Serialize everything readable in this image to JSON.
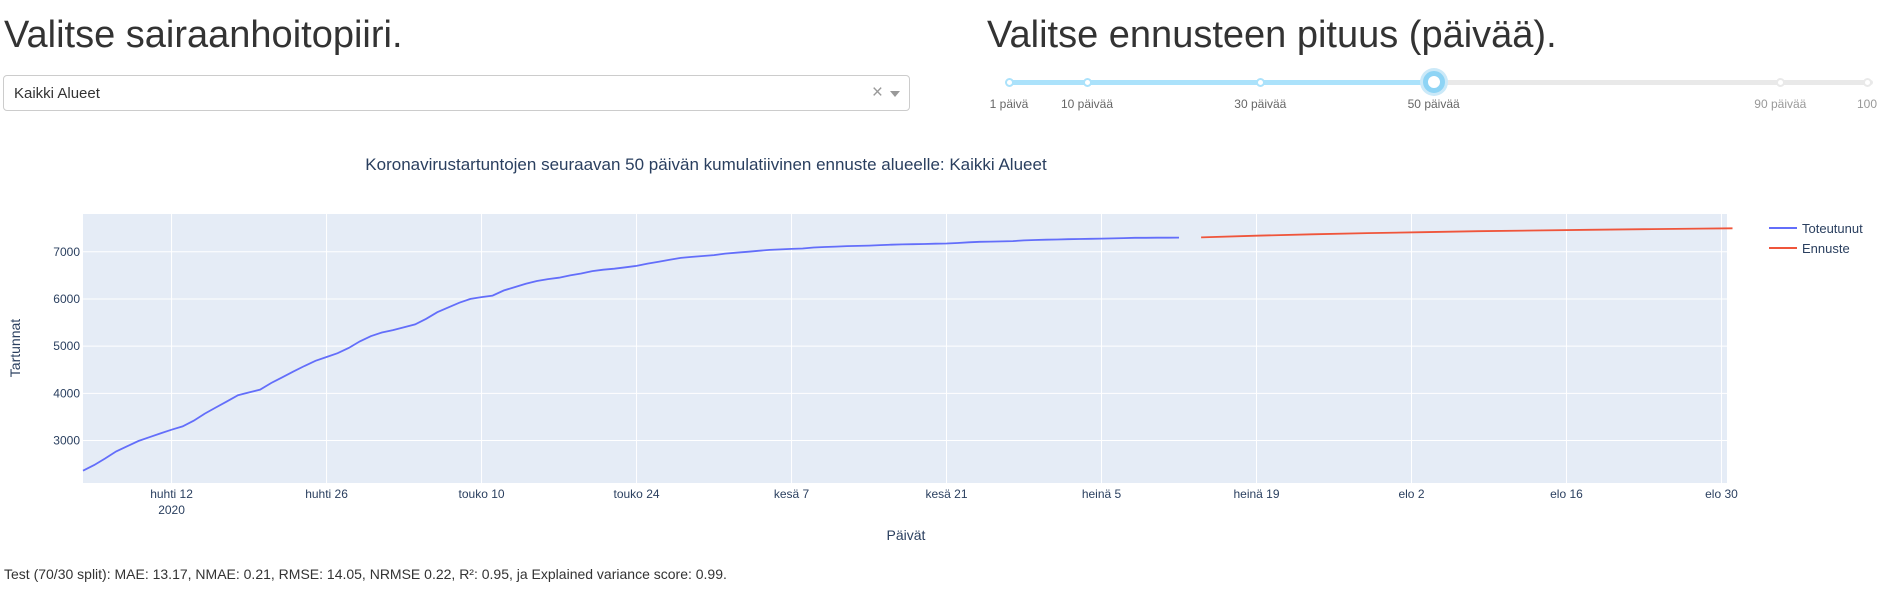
{
  "district": {
    "heading": "Valitse sairaanhoitopiiri.",
    "selected": "Kaikki Alueet",
    "clear_glyph": "×"
  },
  "forecast_length": {
    "heading": "Valitse ennusteen pituus (päivää).",
    "value": 50,
    "min": 1,
    "max": 100,
    "marks": [
      {
        "value": 1,
        "label": "1 päivä"
      },
      {
        "value": 10,
        "label": "10 päivää"
      },
      {
        "value": 30,
        "label": "30 päivää"
      },
      {
        "value": 50,
        "label": "50 päivää"
      },
      {
        "value": 90,
        "label": "90 päivää"
      },
      {
        "value": 100,
        "label": "100"
      }
    ]
  },
  "chart_data": {
    "type": "line",
    "title": "Koronavirustartuntojen seuraavan 50 päivän kumulatiivinen ennuste alueelle: Kaikki Alueet",
    "xlabel": "Päivät",
    "ylabel": "Tartunnat",
    "x_start": "2020-04-04",
    "x_end": "2020-08-30",
    "xlim": [
      "2020-04-04",
      "2020-08-30"
    ],
    "ylim": [
      2100,
      7800
    ],
    "y_ticks": [
      3000,
      4000,
      5000,
      6000,
      7000
    ],
    "x_ticks": [
      {
        "date": "2020-04-12",
        "label": "huhti 12",
        "sub": "2020"
      },
      {
        "date": "2020-04-26",
        "label": "huhti 26",
        "sub": ""
      },
      {
        "date": "2020-05-10",
        "label": "touko 10",
        "sub": ""
      },
      {
        "date": "2020-05-24",
        "label": "touko 24",
        "sub": ""
      },
      {
        "date": "2020-06-07",
        "label": "kesä 7",
        "sub": ""
      },
      {
        "date": "2020-06-21",
        "label": "kesä 21",
        "sub": ""
      },
      {
        "date": "2020-07-05",
        "label": "heinä 5",
        "sub": ""
      },
      {
        "date": "2020-07-19",
        "label": "heinä 19",
        "sub": ""
      },
      {
        "date": "2020-08-02",
        "label": "elo 2",
        "sub": ""
      },
      {
        "date": "2020-08-16",
        "label": "elo 16",
        "sub": ""
      },
      {
        "date": "2020-08-30",
        "label": "elo 30",
        "sub": ""
      }
    ],
    "grid": true,
    "legend_position": "top-right",
    "series": [
      {
        "name": "Toteutunut",
        "color": "#636efa",
        "points": [
          {
            "x": "2020-04-04",
            "y": 2360
          },
          {
            "x": "2020-04-05",
            "y": 2480
          },
          {
            "x": "2020-04-06",
            "y": 2620
          },
          {
            "x": "2020-04-07",
            "y": 2770
          },
          {
            "x": "2020-04-08",
            "y": 2880
          },
          {
            "x": "2020-04-09",
            "y": 2990
          },
          {
            "x": "2020-04-10",
            "y": 3070
          },
          {
            "x": "2020-04-11",
            "y": 3150
          },
          {
            "x": "2020-04-12",
            "y": 3230
          },
          {
            "x": "2020-04-13",
            "y": 3300
          },
          {
            "x": "2020-04-14",
            "y": 3420
          },
          {
            "x": "2020-04-15",
            "y": 3570
          },
          {
            "x": "2020-04-16",
            "y": 3700
          },
          {
            "x": "2020-04-17",
            "y": 3830
          },
          {
            "x": "2020-04-18",
            "y": 3960
          },
          {
            "x": "2020-04-19",
            "y": 4020
          },
          {
            "x": "2020-04-20",
            "y": 4080
          },
          {
            "x": "2020-04-21",
            "y": 4220
          },
          {
            "x": "2020-04-22",
            "y": 4340
          },
          {
            "x": "2020-04-23",
            "y": 4460
          },
          {
            "x": "2020-04-24",
            "y": 4580
          },
          {
            "x": "2020-04-25",
            "y": 4690
          },
          {
            "x": "2020-04-26",
            "y": 4770
          },
          {
            "x": "2020-04-27",
            "y": 4850
          },
          {
            "x": "2020-04-28",
            "y": 4960
          },
          {
            "x": "2020-04-29",
            "y": 5100
          },
          {
            "x": "2020-04-30",
            "y": 5210
          },
          {
            "x": "2020-05-01",
            "y": 5290
          },
          {
            "x": "2020-05-02",
            "y": 5340
          },
          {
            "x": "2020-05-03",
            "y": 5400
          },
          {
            "x": "2020-05-04",
            "y": 5460
          },
          {
            "x": "2020-05-05",
            "y": 5580
          },
          {
            "x": "2020-05-06",
            "y": 5720
          },
          {
            "x": "2020-05-07",
            "y": 5820
          },
          {
            "x": "2020-05-08",
            "y": 5920
          },
          {
            "x": "2020-05-09",
            "y": 6000
          },
          {
            "x": "2020-05-10",
            "y": 6040
          },
          {
            "x": "2020-05-11",
            "y": 6070
          },
          {
            "x": "2020-05-12",
            "y": 6180
          },
          {
            "x": "2020-05-13",
            "y": 6250
          },
          {
            "x": "2020-05-14",
            "y": 6320
          },
          {
            "x": "2020-05-15",
            "y": 6380
          },
          {
            "x": "2020-05-16",
            "y": 6420
          },
          {
            "x": "2020-05-17",
            "y": 6450
          },
          {
            "x": "2020-05-18",
            "y": 6500
          },
          {
            "x": "2020-05-19",
            "y": 6540
          },
          {
            "x": "2020-05-20",
            "y": 6590
          },
          {
            "x": "2020-05-21",
            "y": 6620
          },
          {
            "x": "2020-05-22",
            "y": 6640
          },
          {
            "x": "2020-05-23",
            "y": 6670
          },
          {
            "x": "2020-05-24",
            "y": 6700
          },
          {
            "x": "2020-05-25",
            "y": 6750
          },
          {
            "x": "2020-05-26",
            "y": 6790
          },
          {
            "x": "2020-05-27",
            "y": 6830
          },
          {
            "x": "2020-05-28",
            "y": 6870
          },
          {
            "x": "2020-05-29",
            "y": 6890
          },
          {
            "x": "2020-05-30",
            "y": 6910
          },
          {
            "x": "2020-05-31",
            "y": 6930
          },
          {
            "x": "2020-06-01",
            "y": 6960
          },
          {
            "x": "2020-06-02",
            "y": 6980
          },
          {
            "x": "2020-06-03",
            "y": 7000
          },
          {
            "x": "2020-06-04",
            "y": 7020
          },
          {
            "x": "2020-06-05",
            "y": 7040
          },
          {
            "x": "2020-06-06",
            "y": 7050
          },
          {
            "x": "2020-06-07",
            "y": 7060
          },
          {
            "x": "2020-06-08",
            "y": 7070
          },
          {
            "x": "2020-06-09",
            "y": 7090
          },
          {
            "x": "2020-06-10",
            "y": 7100
          },
          {
            "x": "2020-06-11",
            "y": 7110
          },
          {
            "x": "2020-06-12",
            "y": 7120
          },
          {
            "x": "2020-06-13",
            "y": 7125
          },
          {
            "x": "2020-06-14",
            "y": 7130
          },
          {
            "x": "2020-06-15",
            "y": 7140
          },
          {
            "x": "2020-06-16",
            "y": 7150
          },
          {
            "x": "2020-06-17",
            "y": 7155
          },
          {
            "x": "2020-06-18",
            "y": 7160
          },
          {
            "x": "2020-06-19",
            "y": 7165
          },
          {
            "x": "2020-06-20",
            "y": 7170
          },
          {
            "x": "2020-06-21",
            "y": 7175
          },
          {
            "x": "2020-06-22",
            "y": 7185
          },
          {
            "x": "2020-06-23",
            "y": 7200
          },
          {
            "x": "2020-06-24",
            "y": 7210
          },
          {
            "x": "2020-06-25",
            "y": 7215
          },
          {
            "x": "2020-06-26",
            "y": 7220
          },
          {
            "x": "2020-06-27",
            "y": 7225
          },
          {
            "x": "2020-06-28",
            "y": 7240
          },
          {
            "x": "2020-06-29",
            "y": 7250
          },
          {
            "x": "2020-06-30",
            "y": 7255
          },
          {
            "x": "2020-07-01",
            "y": 7260
          },
          {
            "x": "2020-07-02",
            "y": 7265
          },
          {
            "x": "2020-07-03",
            "y": 7270
          },
          {
            "x": "2020-07-04",
            "y": 7275
          },
          {
            "x": "2020-07-05",
            "y": 7278
          },
          {
            "x": "2020-07-06",
            "y": 7282
          },
          {
            "x": "2020-07-07",
            "y": 7290
          },
          {
            "x": "2020-07-08",
            "y": 7295
          },
          {
            "x": "2020-07-09",
            "y": 7296
          },
          {
            "x": "2020-07-10",
            "y": 7297
          },
          {
            "x": "2020-07-11",
            "y": 7298
          },
          {
            "x": "2020-07-12",
            "y": 7300
          }
        ]
      },
      {
        "name": "Ennuste",
        "color": "#ef553b",
        "points": [
          {
            "x": "2020-07-14",
            "y": 7305
          },
          {
            "x": "2020-07-19",
            "y": 7340
          },
          {
            "x": "2020-07-24",
            "y": 7370
          },
          {
            "x": "2020-07-29",
            "y": 7395
          },
          {
            "x": "2020-08-03",
            "y": 7415
          },
          {
            "x": "2020-08-08",
            "y": 7435
          },
          {
            "x": "2020-08-13",
            "y": 7450
          },
          {
            "x": "2020-08-18",
            "y": 7465
          },
          {
            "x": "2020-08-23",
            "y": 7478
          },
          {
            "x": "2020-08-28",
            "y": 7490
          },
          {
            "x": "2020-08-31",
            "y": 7497
          }
        ]
      }
    ]
  },
  "footer": {
    "metrics_text": "Test (70/30 split): MAE: 13.17, NMAE: 0.21, RMSE: 14.05, NRMSE 0.22, R²: 0.95, ja Explained variance score: 0.99."
  }
}
